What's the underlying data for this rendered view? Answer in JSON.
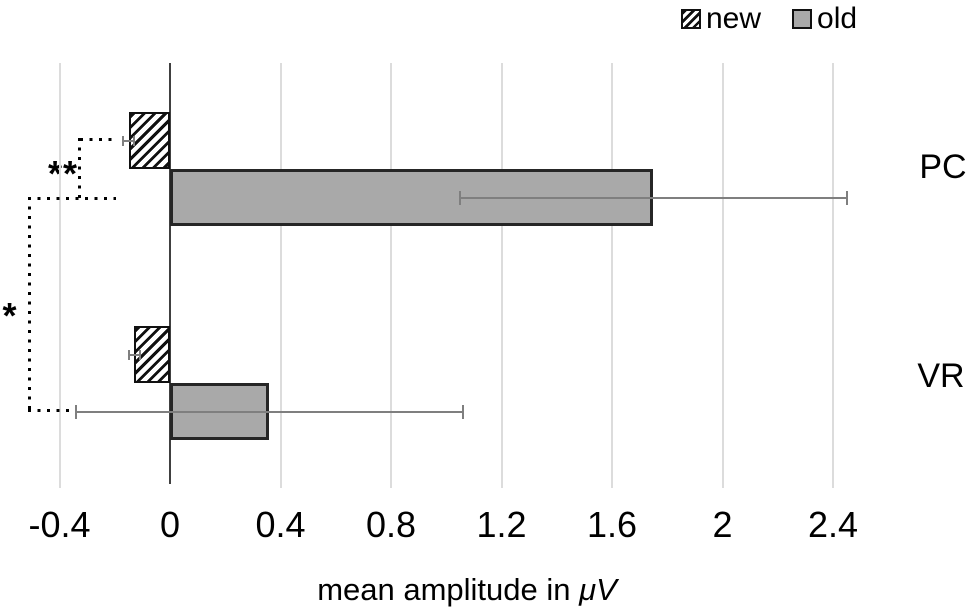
{
  "colors": {
    "bar_fill": "#a9a9a9",
    "bar_border": "#262626",
    "hatch_stroke": "#111111",
    "gridline": "#dcdcdc",
    "zero_axis": "#404040",
    "error_bar": "#7f7f7f",
    "text": "#000000"
  },
  "chart_data": {
    "type": "bar",
    "orientation": "horizontal",
    "title": "",
    "categories": [
      "PC",
      "VR"
    ],
    "series": [
      {
        "name": "new",
        "pattern": "hatched",
        "values": [
          -0.15,
          -0.13
        ],
        "errors": [
          0.02,
          0.02
        ]
      },
      {
        "name": "old",
        "pattern": "solid",
        "values": [
          1.75,
          0.36
        ],
        "errors": [
          0.7,
          0.7
        ]
      }
    ],
    "xlabel_text": "mean amplitude in ",
    "xlabel_unit": "μV",
    "x_ticks": [
      -0.4,
      0,
      0.4,
      0.8,
      1.2,
      1.6,
      2,
      2.4
    ],
    "x_tick_labels": [
      "-0.4",
      "0",
      "0.4",
      "0.8",
      "1.2",
      "1.6",
      "2",
      "2.4"
    ],
    "xlim": [
      -0.62,
      2.89
    ],
    "grid": "vertical",
    "legend_position": "top-right",
    "significance": [
      {
        "text": "**",
        "compares": [
          "PC:new",
          "PC:old"
        ]
      },
      {
        "text": "*",
        "compares": [
          "PC",
          "VR"
        ]
      }
    ]
  }
}
